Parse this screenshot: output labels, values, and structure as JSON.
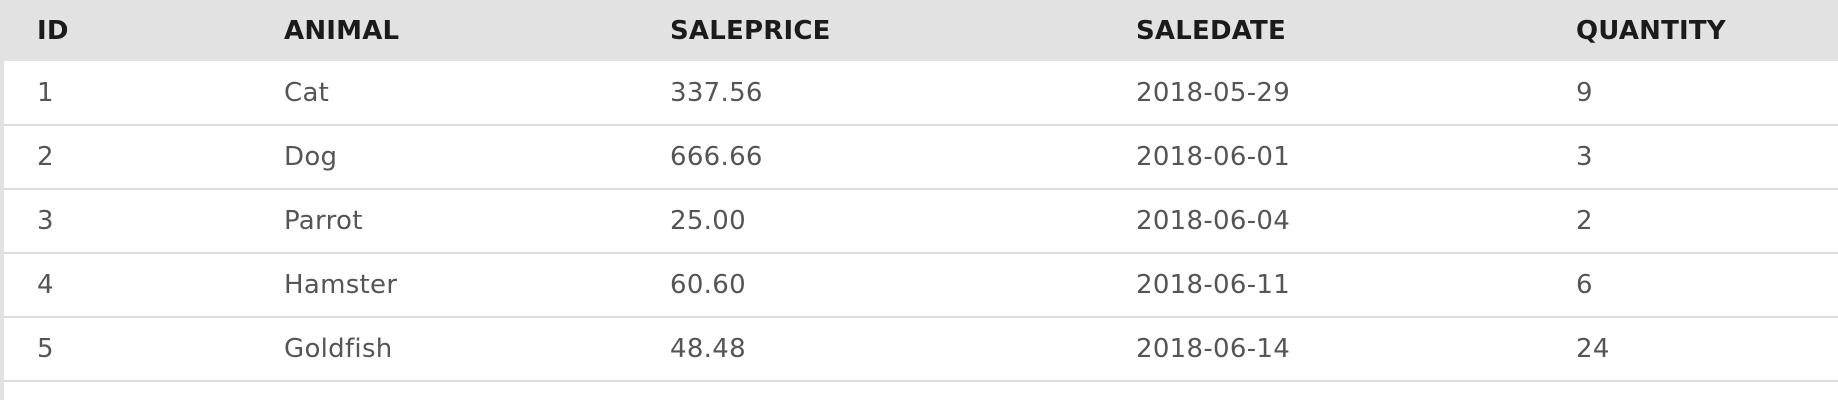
{
  "table": {
    "columns": [
      "ID",
      "ANIMAL",
      "SALEPRICE",
      "SALEDATE",
      "QUANTITY"
    ],
    "rows": [
      [
        "1",
        "Cat",
        "337.56",
        "2018-05-29",
        "9"
      ],
      [
        "2",
        "Dog",
        "666.66",
        "2018-06-01",
        "3"
      ],
      [
        "3",
        "Parrot",
        "25.00",
        "2018-06-04",
        "2"
      ],
      [
        "4",
        "Hamster",
        "60.60",
        "2018-06-11",
        "6"
      ],
      [
        "5",
        "Goldfish",
        "48.48",
        "2018-06-14",
        "24"
      ]
    ]
  },
  "colors": {
    "header_background": "#e2e2e2",
    "header_text": "#1b1b1b",
    "cell_text": "#555555",
    "row_divider": "#dcdcdc"
  }
}
